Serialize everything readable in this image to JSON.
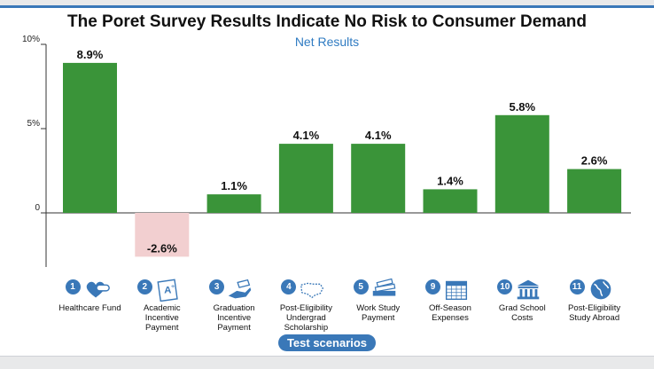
{
  "chart_data": {
    "type": "bar",
    "title": "The Poret Survey Results Indicate No Risk to Consumer Demand",
    "subtitle": "Net Results",
    "xlabel": "Test scenarios",
    "ylabel": "",
    "ylim": [
      -3,
      10
    ],
    "yticks": [
      {
        "v": 0,
        "label": "0"
      },
      {
        "v": 5,
        "label": "5%"
      },
      {
        "v": 10,
        "label": "10%"
      }
    ],
    "categories": [
      {
        "number": "1",
        "label": "Healthcare Fund",
        "icon": "heart-pill-icon"
      },
      {
        "number": "2",
        "label": "Academic\nIncentive\nPayment",
        "icon": "grade-paper-icon"
      },
      {
        "number": "3",
        "label": "Graduation\nIncentive\nPayment",
        "icon": "graduation-hand-icon"
      },
      {
        "number": "4",
        "label": "Post-Eligibility\nUndergrad\nScholarship",
        "icon": "us-map-icon"
      },
      {
        "number": "5",
        "label": "Work Study\nPayment",
        "icon": "books-icon"
      },
      {
        "number": "9",
        "label": "Off-Season\nExpenses",
        "icon": "calendar-icon"
      },
      {
        "number": "10",
        "label": "Grad School\nCosts",
        "icon": "university-building-icon"
      },
      {
        "number": "11",
        "label": "Post-Eligibility\nStudy Abroad",
        "icon": "globe-icon"
      }
    ],
    "values": [
      8.9,
      -2.6,
      1.1,
      4.1,
      4.1,
      1.4,
      5.8,
      2.6
    ],
    "data_labels": [
      "8.9%",
      "-2.6%",
      "1.1%",
      "4.1%",
      "4.1%",
      "1.4%",
      "5.8%",
      "2.6%"
    ],
    "colors": {
      "positive": "#3a9439",
      "negative": "#f2cfd0",
      "axis": "#333333"
    }
  }
}
